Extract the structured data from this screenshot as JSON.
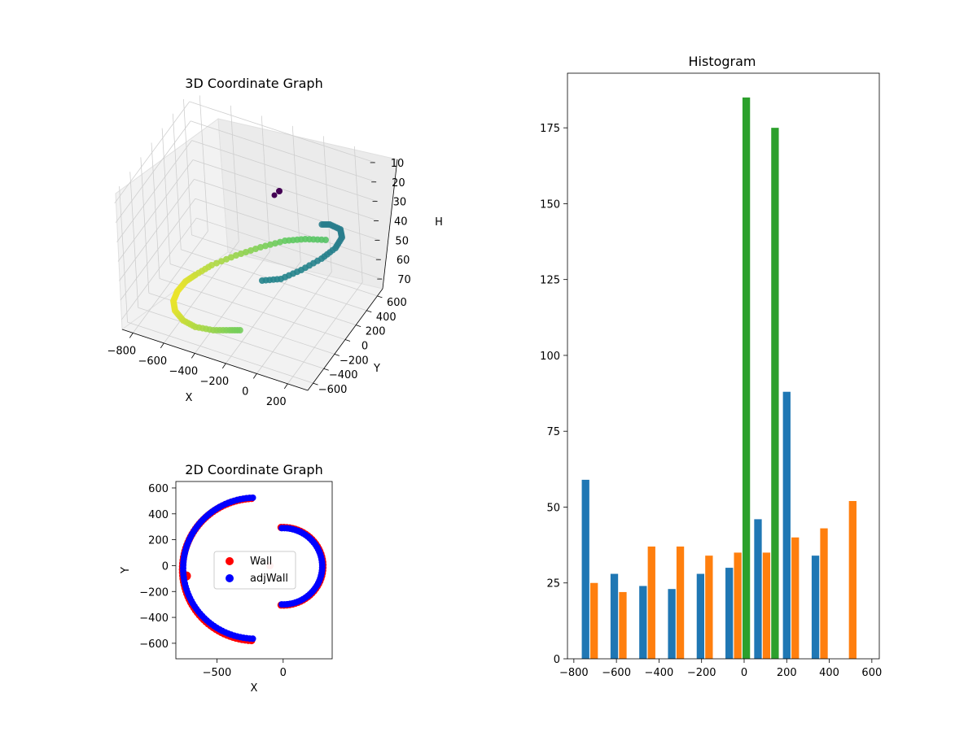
{
  "chart_data": [
    {
      "type": "scatter3d",
      "title": "3D Coordinate Graph",
      "xlabel": "X",
      "ylabel": "Y",
      "zlabel": "H",
      "x_ticks": [
        "−800",
        "−600",
        "−400",
        "−200",
        "0",
        "200"
      ],
      "y_ticks": [
        "−600",
        "−400",
        "−200",
        "0",
        "200",
        "400",
        "600"
      ],
      "z_ticks": [
        "10",
        "20",
        "30",
        "40",
        "50",
        "60",
        "70"
      ],
      "z_inverted": true,
      "colormap": "viridis",
      "grid": true
    },
    {
      "type": "scatter",
      "title": "2D Coordinate Graph",
      "xlabel": "X",
      "ylabel": "Y",
      "xlim": [
        -810,
        370
      ],
      "ylim": [
        -720,
        650
      ],
      "x_ticks": [
        "−500",
        "0"
      ],
      "y_ticks": [
        "−600",
        "−400",
        "−200",
        "0",
        "200",
        "400",
        "600"
      ],
      "legend_position": "center",
      "series": [
        {
          "name": "Wall",
          "color": "#ff0000"
        },
        {
          "name": "adjWall",
          "color": "#0000ff"
        }
      ]
    },
    {
      "type": "bar",
      "title": "Histogram",
      "xlim": [
        -830,
        635
      ],
      "ylim": [
        0,
        193
      ],
      "x_ticks": [
        "−800",
        "−600",
        "−400",
        "−200",
        "0",
        "200",
        "400",
        "600"
      ],
      "y_ticks": [
        "0",
        "25",
        "50",
        "75",
        "100",
        "125",
        "150",
        "175"
      ],
      "series": [
        {
          "color": "#1f77b4",
          "bars": [
            {
              "x": -745,
              "value": 59
            },
            {
              "x": -610,
              "value": 28
            },
            {
              "x": -475,
              "value": 24
            },
            {
              "x": -340,
              "value": 23
            },
            {
              "x": -205,
              "value": 28
            },
            {
              "x": -70,
              "value": 30
            },
            {
              "x": 65,
              "value": 46
            },
            {
              "x": 200,
              "value": 88
            },
            {
              "x": 335,
              "value": 34
            }
          ]
        },
        {
          "color": "#ff7f0e",
          "bars": [
            {
              "x": -705,
              "value": 25
            },
            {
              "x": -570,
              "value": 22
            },
            {
              "x": -435,
              "value": 37
            },
            {
              "x": -300,
              "value": 37
            },
            {
              "x": -165,
              "value": 34
            },
            {
              "x": -30,
              "value": 35
            },
            {
              "x": 105,
              "value": 35
            },
            {
              "x": 240,
              "value": 40
            },
            {
              "x": 375,
              "value": 43
            },
            {
              "x": 510,
              "value": 52
            }
          ]
        },
        {
          "color": "#2ca02c",
          "bars": [
            {
              "x": 10,
              "value": 185
            },
            {
              "x": 145,
              "value": 175
            }
          ]
        }
      ]
    }
  ]
}
